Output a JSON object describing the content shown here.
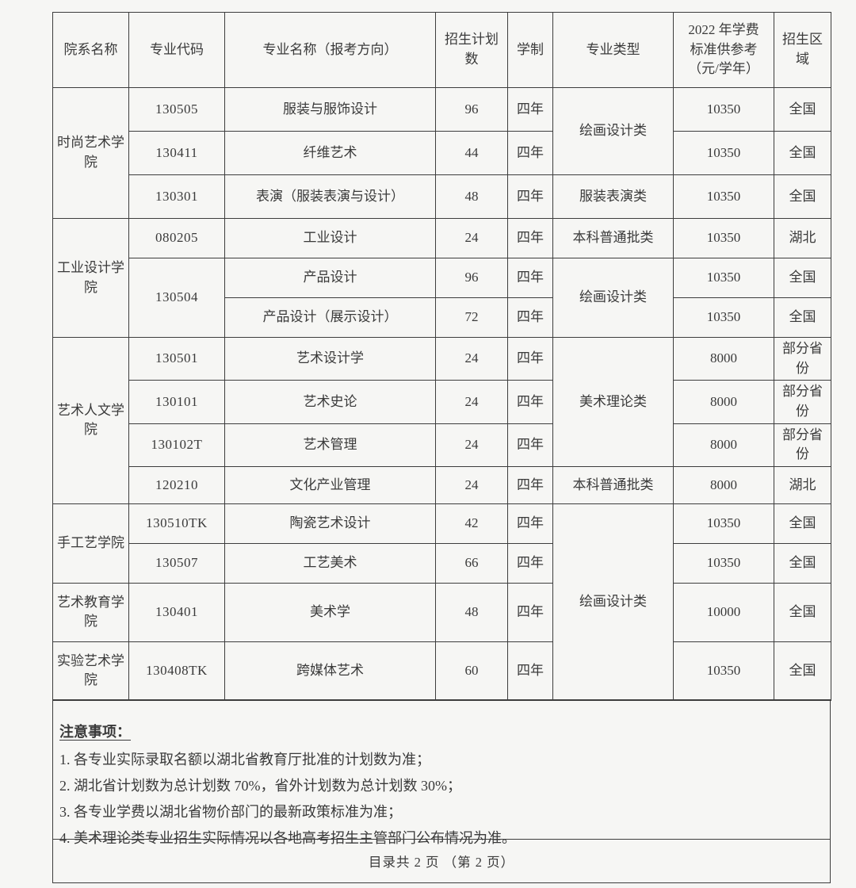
{
  "style": {
    "paper_color": "#f6f6f4",
    "ink_color": "#3a3a3a",
    "border_color": "#3d3d3d"
  },
  "table": {
    "headers": {
      "department": "院系名称",
      "major_code": "专业代码",
      "major_name": "专业名称（报考方向）",
      "plan_count": "招生计划数",
      "duration": "学制",
      "major_type": "专业类型",
      "tuition": "2022 年学费标准供参考（元/学年）",
      "region": "招生区域"
    },
    "rows": [
      {
        "dept": "时尚艺术学院",
        "code": "130505",
        "name": "服装与服饰设计",
        "count": "96",
        "duration": "四年",
        "type": "绘画设计类",
        "tuition": "10350",
        "region": "全国"
      },
      {
        "code": "130411",
        "name": "纤维艺术",
        "count": "44",
        "duration": "四年",
        "tuition": "10350",
        "region": "全国"
      },
      {
        "code": "130301",
        "name": "表演（服装表演与设计）",
        "count": "48",
        "duration": "四年",
        "type": "服装表演类",
        "tuition": "10350",
        "region": "全国"
      },
      {
        "dept": "工业设计学院",
        "code": "080205",
        "name": "工业设计",
        "count": "24",
        "duration": "四年",
        "type": "本科普通批类",
        "tuition": "10350",
        "region": "湖北"
      },
      {
        "code": "130504",
        "name": "产品设计",
        "count": "96",
        "duration": "四年",
        "type": "绘画设计类",
        "tuition": "10350",
        "region": "全国"
      },
      {
        "name": "产品设计（展示设计）",
        "count": "72",
        "duration": "四年",
        "tuition": "10350",
        "region": "全国"
      },
      {
        "dept": "艺术人文学院",
        "code": "130501",
        "name": "艺术设计学",
        "count": "24",
        "duration": "四年",
        "type": "美术理论类",
        "tuition": "8000",
        "region": "部分省份"
      },
      {
        "code": "130101",
        "name": "艺术史论",
        "count": "24",
        "duration": "四年",
        "tuition": "8000",
        "region": "部分省份"
      },
      {
        "code": "130102T",
        "name": "艺术管理",
        "count": "24",
        "duration": "四年",
        "tuition": "8000",
        "region": "部分省份"
      },
      {
        "code": "120210",
        "name": "文化产业管理",
        "count": "24",
        "duration": "四年",
        "type": "本科普通批类",
        "tuition": "8000",
        "region": "湖北"
      },
      {
        "dept": "手工艺学院",
        "code": "130510TK",
        "name": "陶瓷艺术设计",
        "count": "42",
        "duration": "四年",
        "type": "绘画设计类",
        "tuition": "10350",
        "region": "全国"
      },
      {
        "code": "130507",
        "name": "工艺美术",
        "count": "66",
        "duration": "四年",
        "tuition": "10350",
        "region": "全国"
      },
      {
        "dept": "艺术教育学院",
        "code": "130401",
        "name": "美术学",
        "count": "48",
        "duration": "四年",
        "tuition": "10000",
        "region": "全国"
      },
      {
        "dept": "实验艺术学院",
        "code": "130408TK",
        "name": "跨媒体艺术",
        "count": "60",
        "duration": "四年",
        "tuition": "10350",
        "region": "全国"
      }
    ]
  },
  "notes": {
    "title": "注意事项：",
    "items": [
      "1. 各专业实际录取名额以湖北省教育厅批准的计划数为准；",
      "2. 湖北省计划数为总计划数 70%，省外计划数为总计划数 30%；",
      "3. 各专业学费以湖北省物价部门的最新政策标准为准；",
      "4. 美术理论类专业招生实际情况以各地高考招生主管部门公布情况为准。"
    ]
  },
  "footer": {
    "page_indicator": "目录共 2 页 （第 2 页）"
  }
}
